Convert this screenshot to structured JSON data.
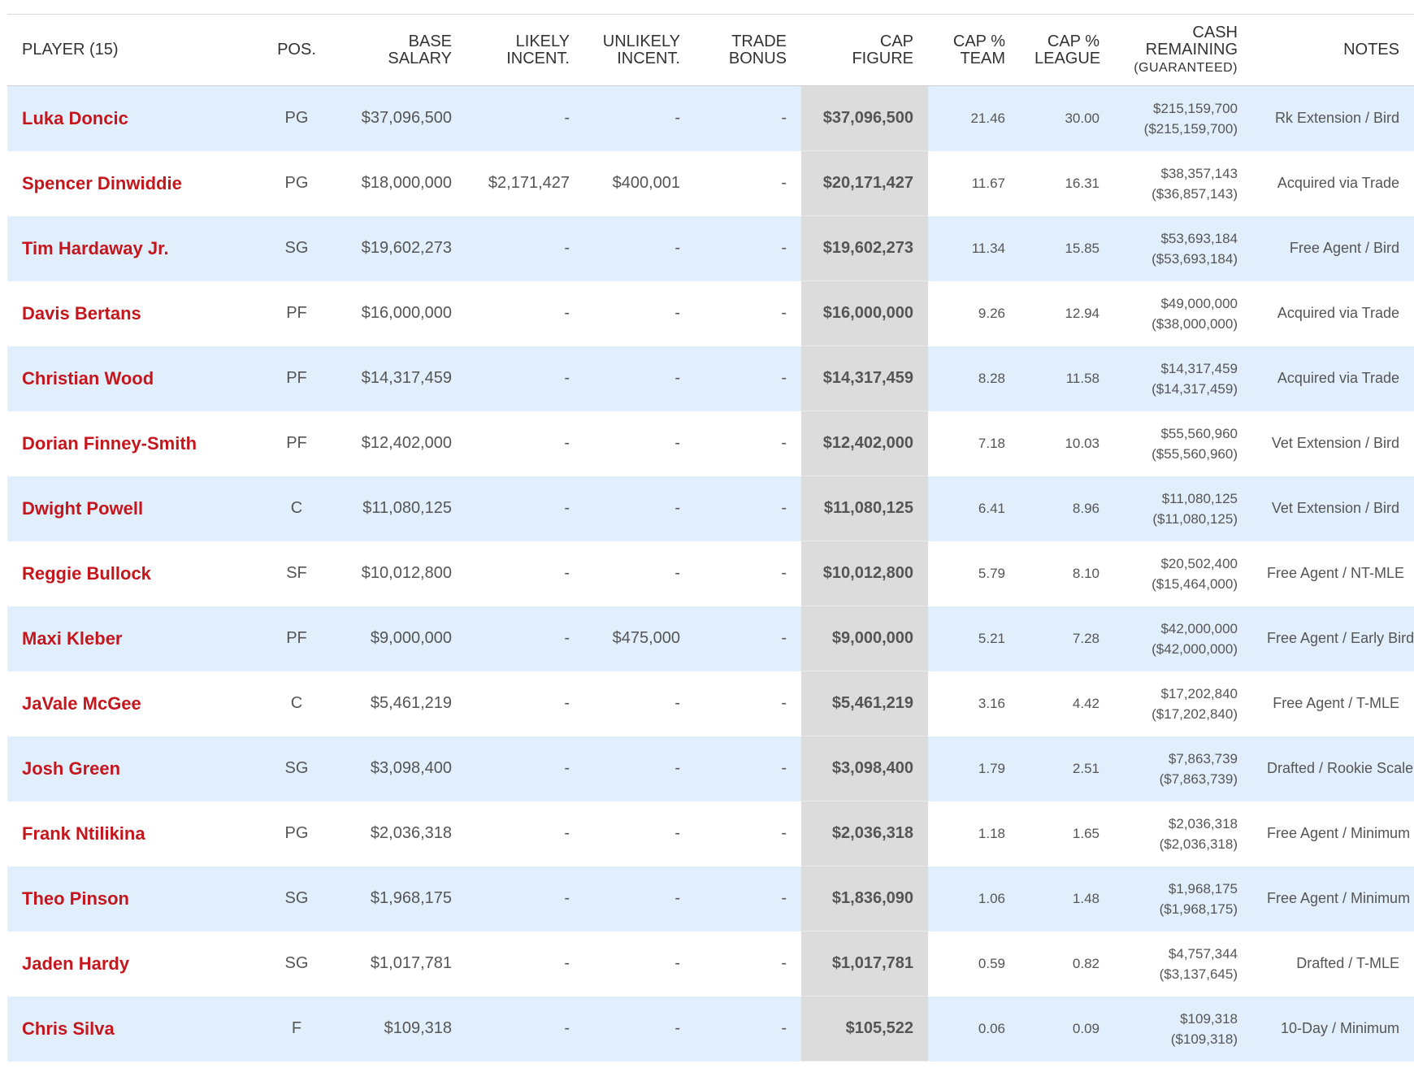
{
  "headers": {
    "player": "PLAYER (15)",
    "pos": "POS.",
    "base_salary": [
      "BASE",
      "SALARY"
    ],
    "likely_incent": [
      "LIKELY",
      "INCENT."
    ],
    "unlikely_incent": [
      "UNLIKELY",
      "INCENT."
    ],
    "trade_bonus": [
      "TRADE",
      "BONUS"
    ],
    "cap_figure": [
      "CAP",
      "FIGURE"
    ],
    "cap_pct_team": [
      "CAP %",
      "TEAM"
    ],
    "cap_pct_league": [
      "CAP %",
      "LEAGUE"
    ],
    "cash_remaining": [
      "CASH",
      "REMAINING",
      "(GUARANTEED)"
    ],
    "notes": "NOTES"
  },
  "rows": [
    {
      "player": "Luka Doncic",
      "pos": "PG",
      "base": "$37,096,500",
      "likely": "-",
      "unlikely": "-",
      "trade": "-",
      "cap": "$37,096,500",
      "team_pct": "21.46",
      "league_pct": "30.00",
      "cash": "$215,159,700",
      "guaranteed": "($215,159,700)",
      "notes": "Rk Extension / Bird"
    },
    {
      "player": "Spencer Dinwiddie",
      "pos": "PG",
      "base": "$18,000,000",
      "likely": "$2,171,427",
      "unlikely": "$400,001",
      "trade": "-",
      "cap": "$20,171,427",
      "team_pct": "11.67",
      "league_pct": "16.31",
      "cash": "$38,357,143",
      "guaranteed": "($36,857,143)",
      "notes": "Acquired via Trade"
    },
    {
      "player": "Tim Hardaway Jr.",
      "pos": "SG",
      "base": "$19,602,273",
      "likely": "-",
      "unlikely": "-",
      "trade": "-",
      "cap": "$19,602,273",
      "team_pct": "11.34",
      "league_pct": "15.85",
      "cash": "$53,693,184",
      "guaranteed": "($53,693,184)",
      "notes": "Free Agent / Bird"
    },
    {
      "player": "Davis Bertans",
      "pos": "PF",
      "base": "$16,000,000",
      "likely": "-",
      "unlikely": "-",
      "trade": "-",
      "cap": "$16,000,000",
      "team_pct": "9.26",
      "league_pct": "12.94",
      "cash": "$49,000,000",
      "guaranteed": "($38,000,000)",
      "notes": "Acquired via Trade"
    },
    {
      "player": "Christian Wood",
      "pos": "PF",
      "base": "$14,317,459",
      "likely": "-",
      "unlikely": "-",
      "trade": "-",
      "cap": "$14,317,459",
      "team_pct": "8.28",
      "league_pct": "11.58",
      "cash": "$14,317,459",
      "guaranteed": "($14,317,459)",
      "notes": "Acquired via Trade"
    },
    {
      "player": "Dorian Finney-Smith",
      "pos": "PF",
      "base": "$12,402,000",
      "likely": "-",
      "unlikely": "-",
      "trade": "-",
      "cap": "$12,402,000",
      "team_pct": "7.18",
      "league_pct": "10.03",
      "cash": "$55,560,960",
      "guaranteed": "($55,560,960)",
      "notes": "Vet Extension / Bird"
    },
    {
      "player": "Dwight Powell",
      "pos": "C",
      "base": "$11,080,125",
      "likely": "-",
      "unlikely": "-",
      "trade": "-",
      "cap": "$11,080,125",
      "team_pct": "6.41",
      "league_pct": "8.96",
      "cash": "$11,080,125",
      "guaranteed": "($11,080,125)",
      "notes": "Vet Extension / Bird"
    },
    {
      "player": "Reggie Bullock",
      "pos": "SF",
      "base": "$10,012,800",
      "likely": "-",
      "unlikely": "-",
      "trade": "-",
      "cap": "$10,012,800",
      "team_pct": "5.79",
      "league_pct": "8.10",
      "cash": "$20,502,400",
      "guaranteed": "($15,464,000)",
      "notes": "Free Agent / NT-MLE"
    },
    {
      "player": "Maxi Kleber",
      "pos": "PF",
      "base": "$9,000,000",
      "likely": "-",
      "unlikely": "$475,000",
      "trade": "-",
      "cap": "$9,000,000",
      "team_pct": "5.21",
      "league_pct": "7.28",
      "cash": "$42,000,000",
      "guaranteed": "($42,000,000)",
      "notes": "Free Agent / Early Bird"
    },
    {
      "player": "JaVale McGee",
      "pos": "C",
      "base": "$5,461,219",
      "likely": "-",
      "unlikely": "-",
      "trade": "-",
      "cap": "$5,461,219",
      "team_pct": "3.16",
      "league_pct": "4.42",
      "cash": "$17,202,840",
      "guaranteed": "($17,202,840)",
      "notes": "Free Agent / T-MLE"
    },
    {
      "player": "Josh Green",
      "pos": "SG",
      "base": "$3,098,400",
      "likely": "-",
      "unlikely": "-",
      "trade": "-",
      "cap": "$3,098,400",
      "team_pct": "1.79",
      "league_pct": "2.51",
      "cash": "$7,863,739",
      "guaranteed": "($7,863,739)",
      "notes": "Drafted / Rookie Scale"
    },
    {
      "player": "Frank Ntilikina",
      "pos": "PG",
      "base": "$2,036,318",
      "likely": "-",
      "unlikely": "-",
      "trade": "-",
      "cap": "$2,036,318",
      "team_pct": "1.18",
      "league_pct": "1.65",
      "cash": "$2,036,318",
      "guaranteed": "($2,036,318)",
      "notes": "Free Agent / Minimum"
    },
    {
      "player": "Theo Pinson",
      "pos": "SG",
      "base": "$1,968,175",
      "likely": "-",
      "unlikely": "-",
      "trade": "-",
      "cap": "$1,836,090",
      "team_pct": "1.06",
      "league_pct": "1.48",
      "cash": "$1,968,175",
      "guaranteed": "($1,968,175)",
      "notes": "Free Agent / Minimum"
    },
    {
      "player": "Jaden Hardy",
      "pos": "SG",
      "base": "$1,017,781",
      "likely": "-",
      "unlikely": "-",
      "trade": "-",
      "cap": "$1,017,781",
      "team_pct": "0.59",
      "league_pct": "0.82",
      "cash": "$4,757,344",
      "guaranteed": "($3,137,645)",
      "notes": "Drafted / T-MLE"
    },
    {
      "player": "Chris Silva",
      "pos": "F",
      "base": "$109,318",
      "likely": "-",
      "unlikely": "-",
      "trade": "-",
      "cap": "$105,522",
      "team_pct": "0.06",
      "league_pct": "0.09",
      "cash": "$109,318",
      "guaranteed": "($109,318)",
      "notes": "10-Day / Minimum"
    }
  ]
}
